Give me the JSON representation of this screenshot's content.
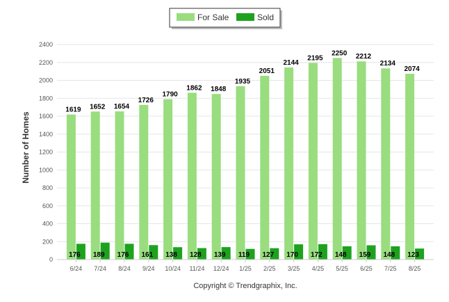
{
  "chart_data": {
    "type": "bar",
    "categories": [
      "6/24",
      "7/24",
      "8/24",
      "9/24",
      "10/24",
      "11/24",
      "12/24",
      "1/25",
      "2/25",
      "3/25",
      "4/25",
      "5/25",
      "6/25",
      "7/25",
      "8/25"
    ],
    "series": [
      {
        "name": "For Sale",
        "color": "#99dd7f",
        "values": [
          1619,
          1652,
          1654,
          1726,
          1790,
          1862,
          1848,
          1935,
          2051,
          2144,
          2195,
          2250,
          2212,
          2134,
          2074
        ]
      },
      {
        "name": "Sold",
        "color": "#1ea21e",
        "values": [
          176,
          189,
          176,
          161,
          138,
          128,
          139,
          119,
          127,
          170,
          172,
          148,
          159,
          148,
          123
        ]
      }
    ],
    "ylabel": "Number of Homes",
    "xlabel": "",
    "ylim": [
      0,
      2400
    ],
    "yticks": [
      0,
      200,
      400,
      600,
      800,
      1000,
      1200,
      1400,
      1600,
      1800,
      2000,
      2200,
      2400
    ],
    "grid": true,
    "legend_position": "top-center",
    "footer": "Copyright © Trendgraphix, Inc."
  }
}
